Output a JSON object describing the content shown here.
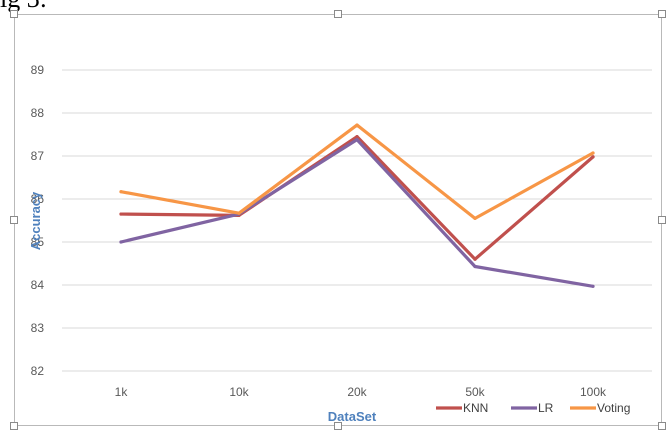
{
  "caption": "ig 3:",
  "chart_data": {
    "type": "line",
    "title": "",
    "xlabel": "DataSet",
    "ylabel": "Accuracy",
    "categories": [
      "1k",
      "10k",
      "20k",
      "50k",
      "100k"
    ],
    "yticks": [
      "82",
      "83",
      "84",
      "85",
      "86",
      "87",
      "88",
      "89"
    ],
    "ylim": [
      82,
      89
    ],
    "grid": true,
    "legend": "bottom-right",
    "series": [
      {
        "name": "KNN",
        "color": "#c0504d",
        "values": [
          85.65,
          85.62,
          87.45,
          84.6,
          86.98
        ]
      },
      {
        "name": "LR",
        "color": "#8064a2",
        "values": [
          85.0,
          85.65,
          87.38,
          84.43,
          83.97
        ]
      },
      {
        "name": "Voting",
        "color": "#f79646",
        "values": [
          86.17,
          85.67,
          87.72,
          85.55,
          87.07
        ]
      }
    ]
  }
}
